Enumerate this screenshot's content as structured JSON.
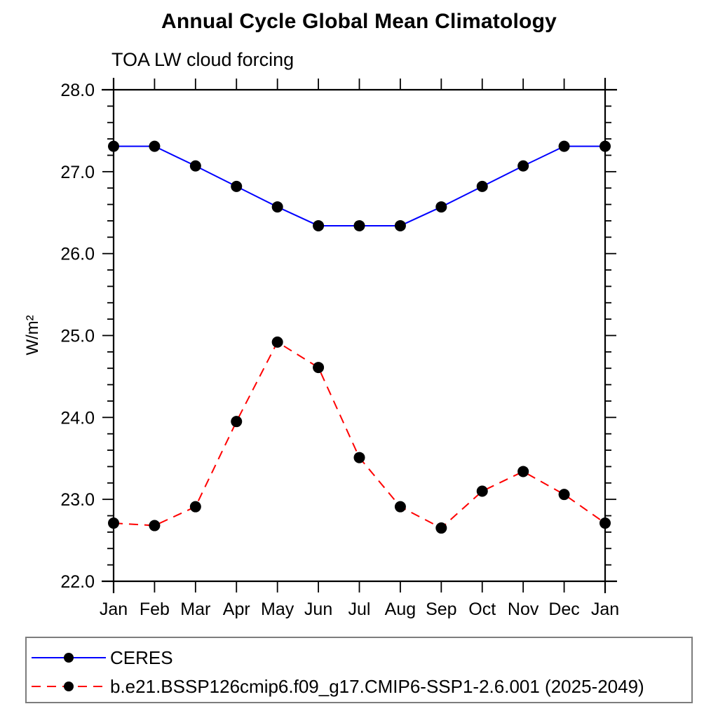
{
  "header": {
    "title": "Annual Cycle Global Mean Climatology",
    "subtitle": "TOA LW cloud forcing"
  },
  "chart_data": {
    "type": "line",
    "title": "Annual Cycle Global Mean Climatology",
    "subtitle": "TOA LW cloud forcing",
    "ylabel": "W/m²",
    "xlabel": "",
    "categories": [
      "Jan",
      "Feb",
      "Mar",
      "Apr",
      "May",
      "Jun",
      "Jul",
      "Aug",
      "Sep",
      "Oct",
      "Nov",
      "Dec",
      "Jan"
    ],
    "series": [
      {
        "name": "CERES",
        "color": "#0000ff",
        "style": "solid",
        "marker": "circle",
        "marker_color": "#000000",
        "values": [
          27.31,
          27.31,
          27.07,
          26.82,
          26.57,
          26.34,
          26.34,
          26.34,
          26.57,
          26.82,
          27.07,
          27.31,
          27.31
        ]
      },
      {
        "name": "b.e21.BSSP126cmip6.f09_g17.CMIP6-SSP1-2.6.001 (2025-2049)",
        "color": "#ff0000",
        "style": "dashed",
        "marker": "circle",
        "marker_color": "#000000",
        "values": [
          22.71,
          22.68,
          22.91,
          23.95,
          24.92,
          24.61,
          23.51,
          22.91,
          22.65,
          23.1,
          23.34,
          23.06,
          22.71
        ]
      }
    ],
    "ylim": [
      22.0,
      28.0
    ],
    "ytick_major": 1.0,
    "ytick_minor": 0.2,
    "ytick_labels": [
      "22.0",
      "23.0",
      "24.0",
      "25.0",
      "26.0",
      "27.0",
      "28.0"
    ],
    "grid": false,
    "legend_position": "bottom",
    "axis_color": "#000000",
    "text_color": "#000000"
  }
}
